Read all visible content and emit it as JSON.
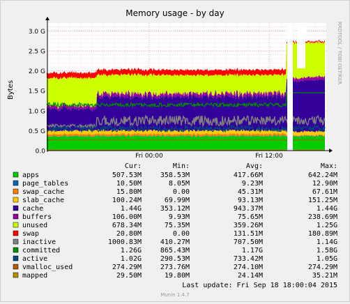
{
  "chart_data": {
    "type": "area",
    "title": "Memory usage - by day",
    "ylabel": "Bytes",
    "ylim": [
      0,
      3.2
    ],
    "y_unit": "G",
    "y_ticks": [
      "0.0",
      "0.5 G",
      "1.0 G",
      "1.5 G",
      "2.0 G",
      "2.5 G",
      "3.0 G"
    ],
    "x_ticks": [
      "Fri 00:00",
      "Fri 12:00"
    ],
    "grid": true,
    "watermark": "RRDTOOL / TOBI OETIKER",
    "columns": [
      "Cur:",
      "Min:",
      "Avg:",
      "Max:"
    ],
    "series": [
      {
        "name": "apps",
        "color": "#00cc00",
        "cur": "507.53M",
        "min": "358.53M",
        "avg": "417.66M",
        "max": "642.24M"
      },
      {
        "name": "page_tables",
        "color": "#0066b3",
        "cur": "10.50M",
        "min": "8.05M",
        "avg": "9.23M",
        "max": "12.90M"
      },
      {
        "name": "swap_cache",
        "color": "#ff8000",
        "cur": "15.80M",
        "min": "0.00",
        "avg": "45.31M",
        "max": "67.61M"
      },
      {
        "name": "slab_cache",
        "color": "#ffcc00",
        "cur": "100.24M",
        "min": "69.99M",
        "avg": "93.13M",
        "max": "151.25M"
      },
      {
        "name": "cache",
        "color": "#330099",
        "cur": "1.44G",
        "min": "353.12M",
        "avg": "943.37M",
        "max": "1.44G"
      },
      {
        "name": "buffers",
        "color": "#990099",
        "cur": "106.00M",
        "min": "9.93M",
        "avg": "75.65M",
        "max": "238.69M"
      },
      {
        "name": "unused",
        "color": "#ccff00",
        "cur": "678.34M",
        "min": "75.35M",
        "avg": "359.26M",
        "max": "1.25G"
      },
      {
        "name": "swap",
        "color": "#ff0000",
        "cur": "20.80M",
        "min": "0.00",
        "avg": "131.51M",
        "max": "180.89M"
      },
      {
        "name": "inactive",
        "color": "#808080",
        "cur": "1000.83M",
        "min": "410.27M",
        "avg": "707.50M",
        "max": "1.14G"
      },
      {
        "name": "committed",
        "color": "#008f00",
        "cur": "1.26G",
        "min": "865.43M",
        "avg": "1.17G",
        "max": "1.58G"
      },
      {
        "name": "active",
        "color": "#00487d",
        "cur": "1.02G",
        "min": "290.53M",
        "avg": "733.42M",
        "max": "1.05G"
      },
      {
        "name": "vmalloc_used",
        "color": "#b35a00",
        "cur": "274.29M",
        "min": "273.76M",
        "avg": "274.10M",
        "max": "274.29M"
      },
      {
        "name": "mapped",
        "color": "#b38f00",
        "cur": "29.50M",
        "min": "19.80M",
        "avg": "24.14M",
        "max": "35.21M"
      }
    ],
    "last_update": "Last update: Fri Sep 18 18:00:04 2015",
    "footer": "Munin 1.4.7"
  }
}
